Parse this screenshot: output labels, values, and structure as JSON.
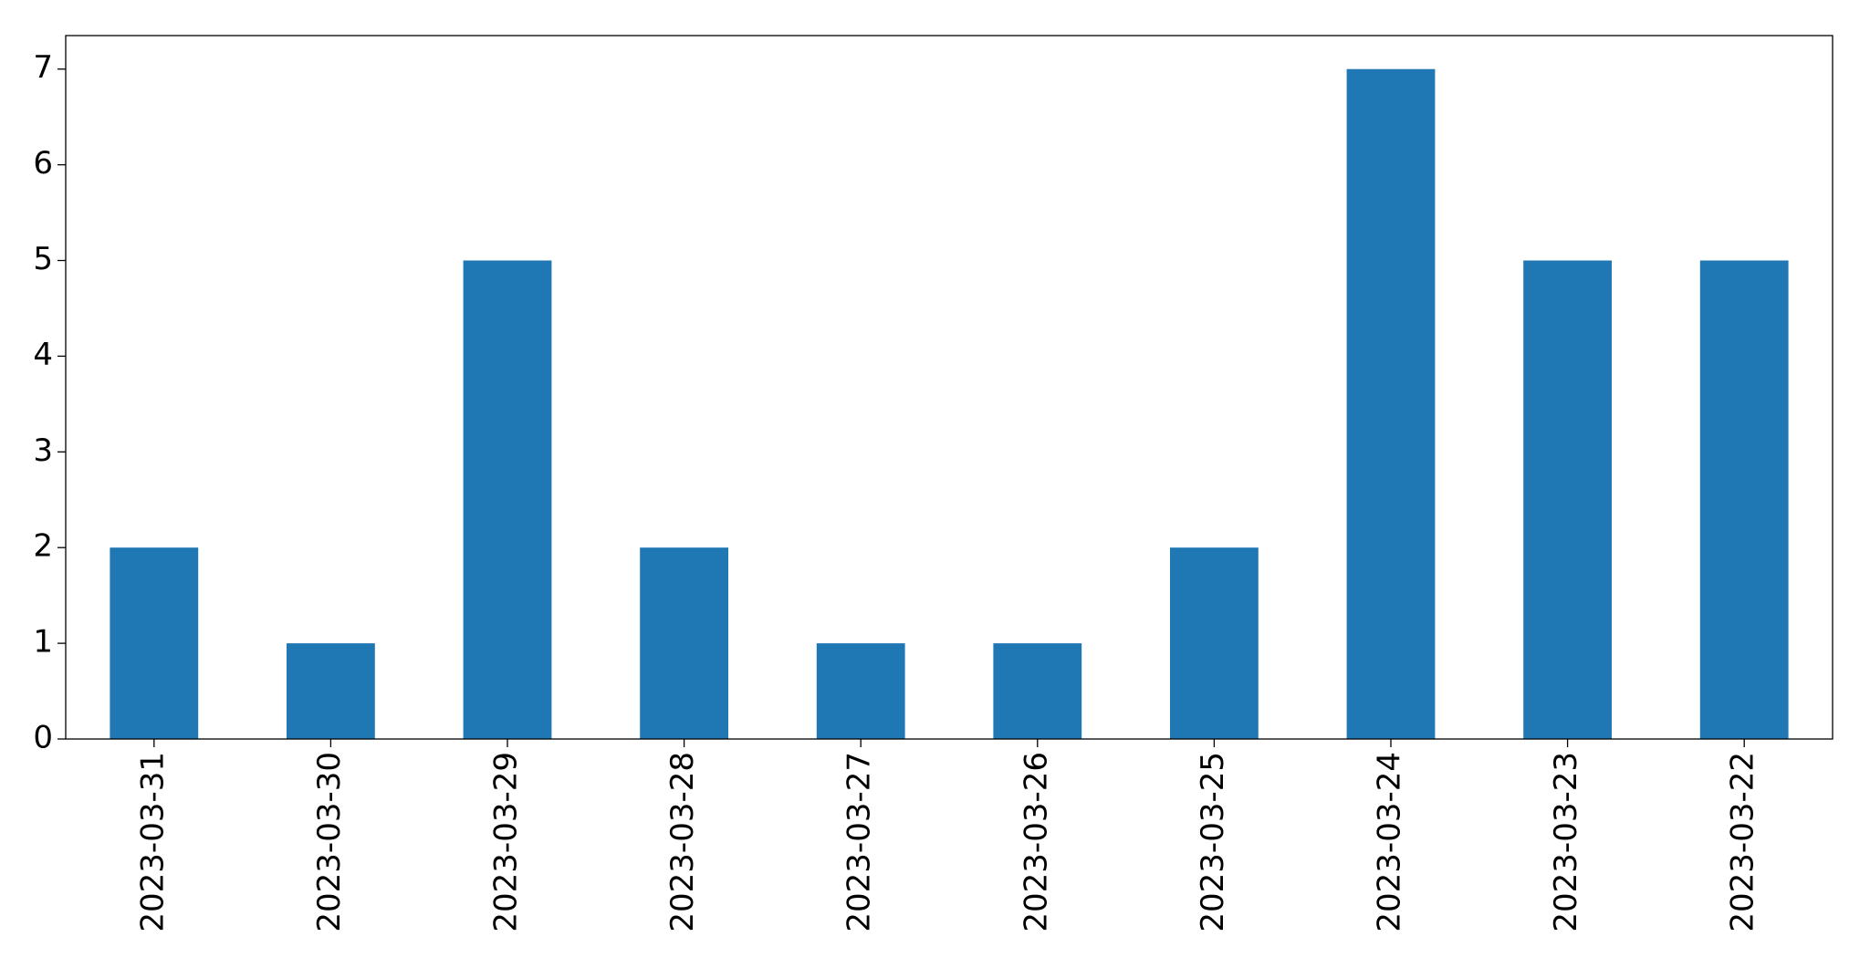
{
  "chart_data": {
    "type": "bar",
    "categories": [
      "2023-03-31",
      "2023-03-30",
      "2023-03-29",
      "2023-03-28",
      "2023-03-27",
      "2023-03-26",
      "2023-03-25",
      "2023-03-24",
      "2023-03-23",
      "2023-03-22"
    ],
    "values": [
      2,
      1,
      5,
      2,
      1,
      1,
      2,
      7,
      5,
      5
    ],
    "color": "#1f77b4",
    "ylim": [
      0,
      7.35
    ],
    "yticks": [
      0,
      1,
      2,
      3,
      4,
      5,
      6,
      7
    ],
    "grid": false
  }
}
